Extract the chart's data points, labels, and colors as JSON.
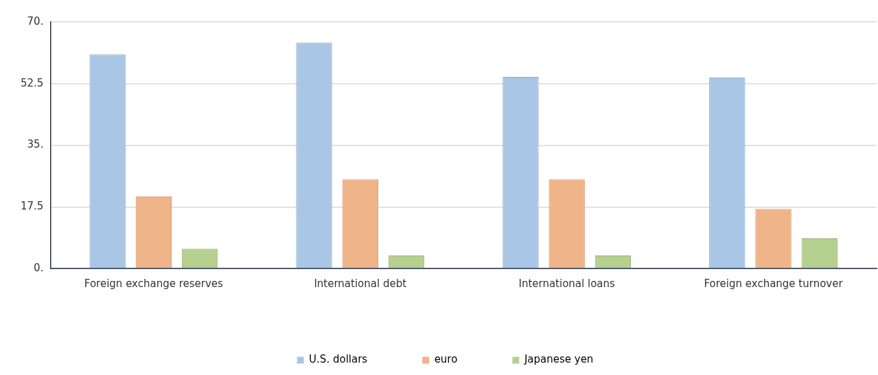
{
  "chart_data": {
    "type": "bar",
    "categories": [
      "Foreign exchange reserves",
      "International debt",
      "International loans",
      "Foreign exchange turnover"
    ],
    "series": [
      {
        "name": "U.S. dollars",
        "color": "#aac6e6",
        "values": [
          60.8,
          64.1,
          54.4,
          54.2
        ]
      },
      {
        "name": "euro",
        "color": "#f0b489",
        "values": [
          20.5,
          25.3,
          25.3,
          16.9
        ]
      },
      {
        "name": "Japanese yen",
        "color": "#b5d08f",
        "values": [
          5.6,
          3.7,
          3.7,
          8.6
        ]
      }
    ],
    "ylim": [
      0,
      70
    ],
    "yticks": [
      {
        "value": 0,
        "label": "0."
      },
      {
        "value": 17.5,
        "label": "17.5"
      },
      {
        "value": 35,
        "label": "35."
      },
      {
        "value": 52.5,
        "label": "52.5"
      },
      {
        "value": 70,
        "label": "70."
      }
    ],
    "grid": "y",
    "legend": "bottom"
  }
}
